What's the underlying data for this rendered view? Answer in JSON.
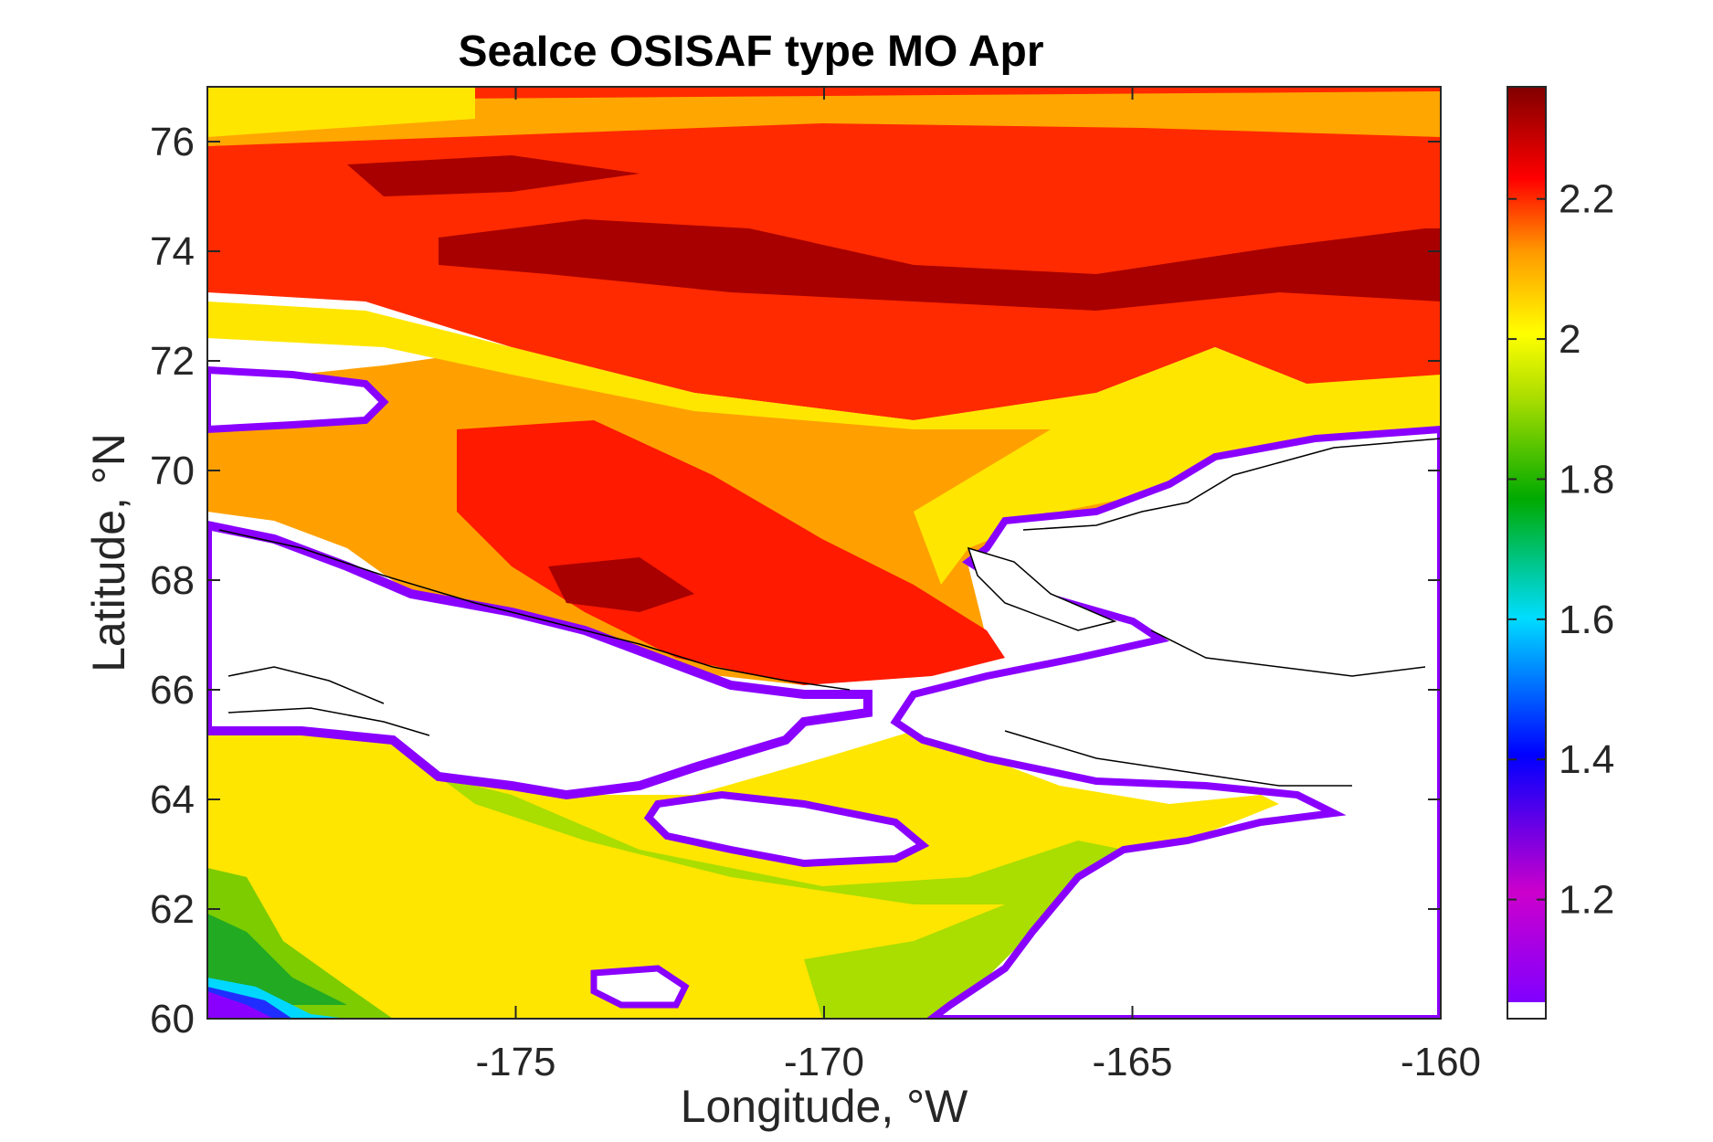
{
  "chart_data": {
    "type": "heatmap",
    "title": "SeaIce OSISAF type MO Apr",
    "xlabel": "Longitude, °W",
    "ylabel": "Latitude, °N",
    "xlim": [
      -180,
      -160
    ],
    "ylim": [
      60,
      77
    ],
    "xticks": [
      -175,
      -170,
      -165,
      -160
    ],
    "xtick_labels": [
      "-175",
      "-170",
      "-165",
      "-160"
    ],
    "yticks": [
      60,
      62,
      64,
      66,
      68,
      70,
      72,
      74,
      76
    ],
    "ytick_labels": [
      "60",
      "62",
      "64",
      "66",
      "68",
      "70",
      "72",
      "74",
      "76"
    ],
    "colorbar": {
      "range": [
        1.03,
        2.36
      ],
      "ticks": [
        1.2,
        1.4,
        1.6,
        1.8,
        2.0,
        2.2
      ],
      "tick_labels": [
        "1.2",
        "1.4",
        "1.6",
        "1.8",
        "2",
        "2.2"
      ],
      "colormap": [
        "#ffffff",
        "#8000ff",
        "#cc00cc",
        "#0000ff",
        "#00ccff",
        "#00aa00",
        "#aadd00",
        "#ffff00",
        "#ff9900",
        "#ff0000",
        "#800000"
      ]
    },
    "regions": [
      {
        "name": "arctic-pack-north",
        "value": 2.2,
        "lon": [
          -180,
          -160
        ],
        "lat": [
          72,
          77
        ],
        "description_color": "#ff2000"
      },
      {
        "name": "dark-core-north",
        "value": 2.32,
        "lon": [
          -174,
          -161
        ],
        "lat": [
          73,
          75
        ]
      },
      {
        "name": "chukchi-mid",
        "value": 2.1,
        "lon": [
          -180,
          -166
        ],
        "lat": [
          66,
          72
        ]
      },
      {
        "name": "chukchi-red-core",
        "value": 2.25,
        "lon": [
          -174,
          -167
        ],
        "lat": [
          67,
          70.5
        ]
      },
      {
        "name": "bering-strait-yellow",
        "value": 2.0,
        "lon": [
          -176,
          -168
        ],
        "lat": [
          70.5,
          72
        ]
      },
      {
        "name": "bering-sea",
        "value": 2.0,
        "lon": [
          -180,
          -163
        ],
        "lat": [
          60,
          65
        ]
      },
      {
        "name": "bering-green-band",
        "value": 1.8,
        "lon": [
          -180,
          -163
        ],
        "lat": [
          60,
          64
        ]
      },
      {
        "name": "bering-southwest-edge",
        "value": 1.2,
        "lon": [
          -180,
          -177
        ],
        "lat": [
          60,
          60.7
        ]
      }
    ],
    "land_mask_color": "#ffffff",
    "coastline_color": "#000000"
  }
}
